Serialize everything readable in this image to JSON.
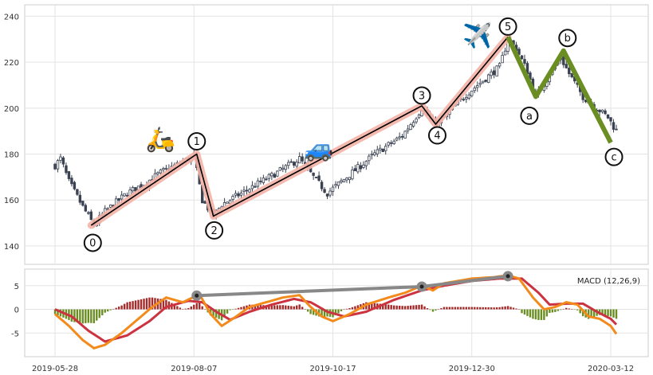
{
  "chart_data": [
    {
      "type": "candlestick",
      "x_tick_labels": [
        "2019-05-28",
        "2019-08-07",
        "2019-10-17",
        "2019-12-30",
        "2020-03-12"
      ],
      "y_ticks": [
        140,
        160,
        180,
        200,
        220,
        240
      ],
      "ylim": [
        132,
        245
      ],
      "grid": true,
      "price_anchors": [
        {
          "day": 0,
          "value": 175
        },
        {
          "day": 2,
          "value": 178
        },
        {
          "day": 5,
          "value": 168
        },
        {
          "day": 10,
          "value": 157
        },
        {
          "day": 14,
          "value": 149
        },
        {
          "day": 18,
          "value": 155
        },
        {
          "day": 26,
          "value": 163
        },
        {
          "day": 32,
          "value": 167
        },
        {
          "day": 38,
          "value": 172
        },
        {
          "day": 45,
          "value": 176
        },
        {
          "day": 50,
          "value": 179
        },
        {
          "day": 53,
          "value": 160
        },
        {
          "day": 57,
          "value": 153
        },
        {
          "day": 60,
          "value": 158
        },
        {
          "day": 70,
          "value": 165
        },
        {
          "day": 80,
          "value": 172
        },
        {
          "day": 88,
          "value": 178
        },
        {
          "day": 93,
          "value": 170
        },
        {
          "day": 98,
          "value": 163
        },
        {
          "day": 105,
          "value": 170
        },
        {
          "day": 115,
          "value": 180
        },
        {
          "day": 125,
          "value": 188
        },
        {
          "day": 132,
          "value": 200
        },
        {
          "day": 137,
          "value": 192
        },
        {
          "day": 140,
          "value": 196
        },
        {
          "day": 148,
          "value": 206
        },
        {
          "day": 155,
          "value": 213
        },
        {
          "day": 160,
          "value": 218
        },
        {
          "day": 163,
          "value": 230
        },
        {
          "day": 166,
          "value": 226
        },
        {
          "day": 170,
          "value": 216
        },
        {
          "day": 173,
          "value": 205
        },
        {
          "day": 177,
          "value": 213
        },
        {
          "day": 182,
          "value": 222
        },
        {
          "day": 185,
          "value": 215
        },
        {
          "day": 190,
          "value": 205
        },
        {
          "day": 195,
          "value": 200
        },
        {
          "day": 199,
          "value": 196
        },
        {
          "day": 202,
          "value": 190
        }
      ],
      "impulse_wave": [
        {
          "label": "0",
          "day": 13,
          "value": 149
        },
        {
          "label": "1",
          "day": 51,
          "value": 180
        },
        {
          "label": "2",
          "day": 57,
          "value": 153
        },
        {
          "label": "3",
          "day": 132,
          "value": 201
        },
        {
          "label": "4",
          "day": 137,
          "value": 193
        },
        {
          "label": "5",
          "day": 163,
          "value": 231
        }
      ],
      "corrective_wave": [
        {
          "label": "5",
          "day": 163,
          "value": 231
        },
        {
          "label": "a",
          "day": 173,
          "value": 205
        },
        {
          "label": "b",
          "day": 183,
          "value": 225
        },
        {
          "label": "c",
          "day": 200,
          "value": 185
        }
      ],
      "icons": [
        {
          "name": "scooter-icon",
          "glyph": "🛵",
          "day": 38,
          "value": 183
        },
        {
          "name": "car-icon",
          "glyph": "🚙",
          "day": 95,
          "value": 179
        },
        {
          "name": "airplane-icon",
          "glyph": "✈️",
          "day": 152,
          "value": 228
        }
      ],
      "colors": {
        "impulse": "#000000",
        "impulse_band": "#f4b3a6",
        "corrective": "#6b8e23",
        "candle": "#3b4252"
      }
    },
    {
      "type": "macd",
      "label": "MACD (12,26,9)",
      "y_ticks": [
        -5,
        0,
        5
      ],
      "ylim": [
        -10,
        8.5
      ],
      "macd_anchors": [
        {
          "day": 0,
          "value": -1
        },
        {
          "day": 5,
          "value": -3.5
        },
        {
          "day": 10,
          "value": -6.5
        },
        {
          "day": 14,
          "value": -8.2
        },
        {
          "day": 18,
          "value": -7.5
        },
        {
          "day": 24,
          "value": -5
        },
        {
          "day": 30,
          "value": -2
        },
        {
          "day": 35,
          "value": 0.5
        },
        {
          "day": 40,
          "value": 2.5
        },
        {
          "day": 46,
          "value": 1.5
        },
        {
          "day": 52,
          "value": 3.2
        },
        {
          "day": 56,
          "value": -1
        },
        {
          "day": 60,
          "value": -3.5
        },
        {
          "day": 64,
          "value": -2
        },
        {
          "day": 70,
          "value": 0.5
        },
        {
          "day": 76,
          "value": 1.5
        },
        {
          "day": 82,
          "value": 2.5
        },
        {
          "day": 88,
          "value": 3
        },
        {
          "day": 92,
          "value": 0.5
        },
        {
          "day": 96,
          "value": -1.5
        },
        {
          "day": 100,
          "value": -2.5
        },
        {
          "day": 106,
          "value": -1
        },
        {
          "day": 112,
          "value": 1
        },
        {
          "day": 120,
          "value": 2.5
        },
        {
          "day": 126,
          "value": 3.5
        },
        {
          "day": 132,
          "value": 5
        },
        {
          "day": 136,
          "value": 4
        },
        {
          "day": 140,
          "value": 5.5
        },
        {
          "day": 150,
          "value": 6.5
        },
        {
          "day": 158,
          "value": 6.8
        },
        {
          "day": 163,
          "value": 7.2
        },
        {
          "day": 167,
          "value": 6.5
        },
        {
          "day": 172,
          "value": 2.5
        },
        {
          "day": 176,
          "value": 0
        },
        {
          "day": 180,
          "value": 0.5
        },
        {
          "day": 184,
          "value": 1.5
        },
        {
          "day": 188,
          "value": 1
        },
        {
          "day": 192,
          "value": -1.5
        },
        {
          "day": 196,
          "value": -2
        },
        {
          "day": 200,
          "value": -3.5
        },
        {
          "day": 202,
          "value": -5.2
        }
      ],
      "signal_anchors": [
        {
          "day": 0,
          "value": 0
        },
        {
          "day": 6,
          "value": -1.5
        },
        {
          "day": 12,
          "value": -4.5
        },
        {
          "day": 18,
          "value": -6.8
        },
        {
          "day": 26,
          "value": -5.5
        },
        {
          "day": 34,
          "value": -2.5
        },
        {
          "day": 40,
          "value": 0.5
        },
        {
          "day": 48,
          "value": 1.8
        },
        {
          "day": 53,
          "value": 1.5
        },
        {
          "day": 58,
          "value": -0.5
        },
        {
          "day": 63,
          "value": -2.2
        },
        {
          "day": 70,
          "value": -0.5
        },
        {
          "day": 78,
          "value": 1
        },
        {
          "day": 86,
          "value": 2.2
        },
        {
          "day": 92,
          "value": 1.5
        },
        {
          "day": 98,
          "value": -0.5
        },
        {
          "day": 104,
          "value": -1.5
        },
        {
          "day": 112,
          "value": -0.5
        },
        {
          "day": 122,
          "value": 2
        },
        {
          "day": 132,
          "value": 4
        },
        {
          "day": 140,
          "value": 5
        },
        {
          "day": 150,
          "value": 6
        },
        {
          "day": 160,
          "value": 6.5
        },
        {
          "day": 168,
          "value": 6.5
        },
        {
          "day": 174,
          "value": 3.5
        },
        {
          "day": 178,
          "value": 1
        },
        {
          "day": 184,
          "value": 1.2
        },
        {
          "day": 190,
          "value": 1.2
        },
        {
          "day": 195,
          "value": -0.5
        },
        {
          "day": 200,
          "value": -2
        },
        {
          "day": 202,
          "value": -3.2
        }
      ],
      "divergence_points": [
        {
          "day": 51,
          "value": 2.9
        },
        {
          "day": 132,
          "value": 4.8
        },
        {
          "day": 163,
          "value": 7.0
        }
      ],
      "colors": {
        "macd": "#f28a1c",
        "signal": "#cc3340",
        "hist_pos": "#a52a2a",
        "hist_neg": "#6b8e23",
        "divergence": "#888888"
      }
    }
  ]
}
